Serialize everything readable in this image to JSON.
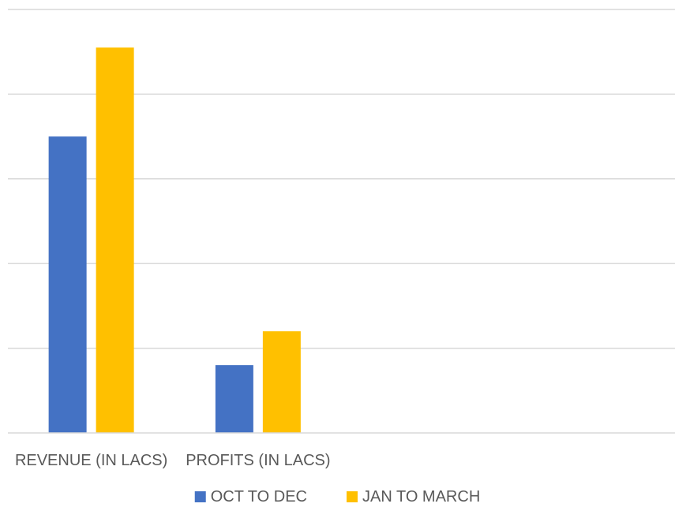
{
  "chart_data": {
    "type": "bar",
    "title": "",
    "xlabel": "",
    "ylabel": "",
    "categories": [
      "REVENUE (IN LACS)",
      "PROFITS (IN LACS)"
    ],
    "slots": 4,
    "series": [
      {
        "name": "OCT TO DEC",
        "color": "#4472C4",
        "values": [
          35,
          8
        ]
      },
      {
        "name": "JAN TO MARCH",
        "color": "#FFC000",
        "values": [
          45.5,
          12
        ]
      }
    ],
    "ylim": [
      0,
      50
    ],
    "grid_step": 10,
    "grid": true,
    "axis_labels_visible": false,
    "legend_position": "bottom-center"
  }
}
